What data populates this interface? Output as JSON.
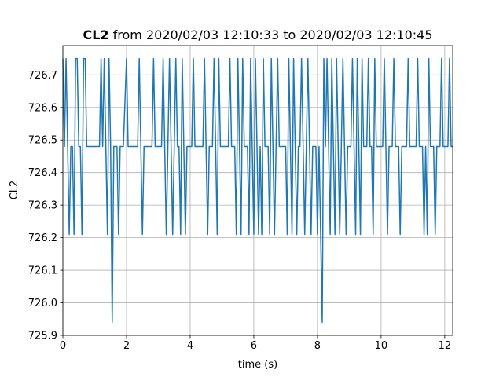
{
  "chart_data": {
    "type": "line",
    "title_bold": "CL2",
    "title_rest": " from 2020/02/03 12:10:33 to 2020/02/03 12:10:45",
    "xlabel": "time (s)",
    "ylabel": "CL2",
    "xlim": [
      0,
      12.25
    ],
    "ylim": [
      725.9,
      726.79
    ],
    "xticks": [
      0,
      2,
      4,
      6,
      8,
      10,
      12
    ],
    "yticks": [
      725.9,
      726.0,
      726.1,
      726.2,
      726.3,
      726.4,
      726.5,
      726.6,
      726.7
    ],
    "xtick_labels": [
      "0",
      "2",
      "4",
      "6",
      "8",
      "10",
      "12"
    ],
    "ytick_labels": [
      "725.9",
      "726.0",
      "726.1",
      "726.2",
      "726.3",
      "726.4",
      "726.5",
      "726.6",
      "726.7"
    ],
    "grid": true,
    "series": [
      {
        "color": "#1f77b4",
        "points": [
          [
            0.0,
            726.75
          ],
          [
            0.05,
            726.48
          ],
          [
            0.1,
            726.75
          ],
          [
            0.15,
            726.48
          ],
          [
            0.2,
            726.21
          ],
          [
            0.25,
            726.48
          ],
          [
            0.3,
            726.48
          ],
          [
            0.35,
            726.21
          ],
          [
            0.4,
            726.75
          ],
          [
            0.45,
            726.75
          ],
          [
            0.5,
            726.48
          ],
          [
            0.55,
            726.48
          ],
          [
            0.6,
            726.21
          ],
          [
            0.65,
            726.75
          ],
          [
            0.7,
            726.75
          ],
          [
            0.75,
            726.48
          ],
          [
            1.0,
            726.48
          ],
          [
            1.15,
            726.48
          ],
          [
            1.2,
            726.75
          ],
          [
            1.25,
            726.48
          ],
          [
            1.3,
            726.75
          ],
          [
            1.35,
            726.48
          ],
          [
            1.4,
            726.21
          ],
          [
            1.45,
            726.75
          ],
          [
            1.5,
            726.48
          ],
          [
            1.55,
            725.94
          ],
          [
            1.6,
            726.48
          ],
          [
            1.7,
            726.48
          ],
          [
            1.75,
            726.21
          ],
          [
            1.8,
            726.48
          ],
          [
            1.9,
            726.48
          ],
          [
            2.0,
            726.75
          ],
          [
            2.05,
            726.48
          ],
          [
            2.35,
            726.48
          ],
          [
            2.4,
            726.75
          ],
          [
            2.45,
            726.48
          ],
          [
            2.5,
            726.21
          ],
          [
            2.55,
            726.48
          ],
          [
            2.8,
            726.48
          ],
          [
            2.85,
            726.75
          ],
          [
            2.9,
            726.48
          ],
          [
            3.1,
            726.48
          ],
          [
            3.15,
            726.75
          ],
          [
            3.2,
            726.48
          ],
          [
            3.25,
            726.21
          ],
          [
            3.3,
            726.48
          ],
          [
            3.35,
            726.75
          ],
          [
            3.4,
            726.48
          ],
          [
            3.45,
            726.21
          ],
          [
            3.5,
            726.48
          ],
          [
            3.55,
            726.75
          ],
          [
            3.6,
            726.48
          ],
          [
            3.65,
            726.48
          ],
          [
            3.7,
            726.21
          ],
          [
            3.75,
            726.75
          ],
          [
            3.8,
            726.48
          ],
          [
            3.85,
            726.21
          ],
          [
            3.9,
            726.48
          ],
          [
            4.05,
            726.48
          ],
          [
            4.1,
            726.75
          ],
          [
            4.15,
            726.48
          ],
          [
            4.4,
            726.48
          ],
          [
            4.45,
            726.75
          ],
          [
            4.5,
            726.48
          ],
          [
            4.55,
            726.21
          ],
          [
            4.6,
            726.48
          ],
          [
            4.7,
            726.48
          ],
          [
            4.75,
            726.75
          ],
          [
            4.8,
            726.48
          ],
          [
            4.85,
            726.21
          ],
          [
            4.9,
            726.75
          ],
          [
            4.95,
            726.48
          ],
          [
            5.2,
            726.48
          ],
          [
            5.25,
            726.75
          ],
          [
            5.3,
            726.48
          ],
          [
            5.4,
            726.48
          ],
          [
            5.45,
            726.21
          ],
          [
            5.5,
            726.75
          ],
          [
            5.55,
            726.48
          ],
          [
            5.6,
            726.21
          ],
          [
            5.65,
            726.75
          ],
          [
            5.7,
            726.48
          ],
          [
            5.8,
            726.48
          ],
          [
            5.85,
            726.21
          ],
          [
            5.9,
            726.75
          ],
          [
            5.95,
            726.48
          ],
          [
            6.0,
            726.21
          ],
          [
            6.05,
            726.75
          ],
          [
            6.1,
            726.48
          ],
          [
            6.15,
            726.21
          ],
          [
            6.2,
            726.48
          ],
          [
            6.25,
            726.21
          ],
          [
            6.3,
            726.75
          ],
          [
            6.35,
            726.48
          ],
          [
            6.45,
            726.48
          ],
          [
            6.5,
            726.21
          ],
          [
            6.55,
            726.75
          ],
          [
            6.6,
            726.48
          ],
          [
            6.65,
            726.21
          ],
          [
            6.7,
            726.48
          ],
          [
            6.75,
            726.75
          ],
          [
            6.8,
            726.48
          ],
          [
            7.0,
            726.48
          ],
          [
            7.05,
            726.21
          ],
          [
            7.1,
            726.75
          ],
          [
            7.15,
            726.48
          ],
          [
            7.2,
            726.21
          ],
          [
            7.25,
            726.75
          ],
          [
            7.3,
            726.48
          ],
          [
            7.35,
            726.21
          ],
          [
            7.4,
            726.48
          ],
          [
            7.45,
            726.48
          ],
          [
            7.5,
            726.75
          ],
          [
            7.55,
            726.48
          ],
          [
            7.6,
            726.21
          ],
          [
            7.65,
            726.48
          ],
          [
            7.7,
            726.75
          ],
          [
            7.75,
            726.48
          ],
          [
            7.8,
            726.21
          ],
          [
            7.85,
            726.48
          ],
          [
            7.95,
            726.48
          ],
          [
            8.0,
            726.21
          ],
          [
            8.05,
            726.48
          ],
          [
            8.1,
            726.21
          ],
          [
            8.15,
            725.94
          ],
          [
            8.2,
            726.75
          ],
          [
            8.25,
            726.48
          ],
          [
            8.3,
            726.75
          ],
          [
            8.35,
            726.48
          ],
          [
            8.4,
            726.21
          ],
          [
            8.45,
            726.75
          ],
          [
            8.5,
            726.48
          ],
          [
            8.55,
            726.21
          ],
          [
            8.6,
            726.75
          ],
          [
            8.65,
            726.48
          ],
          [
            8.7,
            726.21
          ],
          [
            8.75,
            726.48
          ],
          [
            8.8,
            726.75
          ],
          [
            8.85,
            726.48
          ],
          [
            8.9,
            726.21
          ],
          [
            8.95,
            726.48
          ],
          [
            9.05,
            726.48
          ],
          [
            9.1,
            726.75
          ],
          [
            9.15,
            726.48
          ],
          [
            9.2,
            726.21
          ],
          [
            9.25,
            726.75
          ],
          [
            9.3,
            726.48
          ],
          [
            9.35,
            726.21
          ],
          [
            9.4,
            726.75
          ],
          [
            9.45,
            726.48
          ],
          [
            9.55,
            726.48
          ],
          [
            9.6,
            726.75
          ],
          [
            9.65,
            726.48
          ],
          [
            9.7,
            726.48
          ],
          [
            9.75,
            726.21
          ],
          [
            9.8,
            726.75
          ],
          [
            9.85,
            726.48
          ],
          [
            10.05,
            726.48
          ],
          [
            10.1,
            726.75
          ],
          [
            10.15,
            726.48
          ],
          [
            10.2,
            726.21
          ],
          [
            10.25,
            726.48
          ],
          [
            10.35,
            726.48
          ],
          [
            10.4,
            726.75
          ],
          [
            10.45,
            726.48
          ],
          [
            10.55,
            726.48
          ],
          [
            10.6,
            726.21
          ],
          [
            10.65,
            726.48
          ],
          [
            10.8,
            726.48
          ],
          [
            10.85,
            726.75
          ],
          [
            10.9,
            726.48
          ],
          [
            11.1,
            726.48
          ],
          [
            11.15,
            726.75
          ],
          [
            11.2,
            726.48
          ],
          [
            11.3,
            726.48
          ],
          [
            11.35,
            726.21
          ],
          [
            11.4,
            726.48
          ],
          [
            11.45,
            726.21
          ],
          [
            11.5,
            726.75
          ],
          [
            11.55,
            726.48
          ],
          [
            11.65,
            726.48
          ],
          [
            11.7,
            726.21
          ],
          [
            11.75,
            726.48
          ],
          [
            11.85,
            726.48
          ],
          [
            11.9,
            726.75
          ],
          [
            11.95,
            726.48
          ],
          [
            12.1,
            726.48
          ],
          [
            12.15,
            726.75
          ],
          [
            12.2,
            726.48
          ],
          [
            12.25,
            726.48
          ]
        ]
      }
    ]
  }
}
